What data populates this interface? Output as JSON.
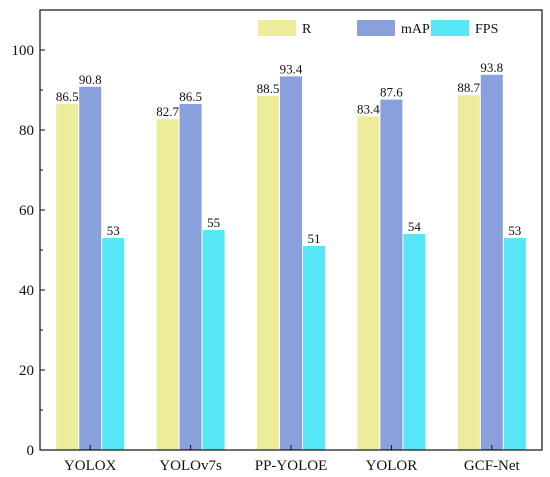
{
  "chart_data": {
    "type": "bar",
    "categories": [
      "YOLOX",
      "YOLOv7s",
      "PP-YOLOE",
      "YOLOR",
      "GCF-Net"
    ],
    "series": [
      {
        "name": "R",
        "values": [
          86.5,
          82.7,
          88.5,
          83.4,
          88.7
        ],
        "labels": [
          "86.5",
          "82.7",
          "88.5",
          "83.4",
          "88.7"
        ]
      },
      {
        "name": "mAP",
        "values": [
          90.8,
          86.5,
          93.4,
          87.6,
          93.8
        ],
        "labels": [
          "90.8",
          "86.5",
          "93.4",
          "87.6",
          "93.8"
        ]
      },
      {
        "name": "FPS",
        "values": [
          53,
          55,
          51,
          54,
          53
        ],
        "labels": [
          "53",
          "55",
          "51",
          "54",
          "53"
        ]
      }
    ],
    "colors": [
      "#ecec9a",
      "#8aa0dc",
      "#56e6f6"
    ],
    "ylim": [
      0,
      110
    ],
    "yticks": [
      0,
      20,
      40,
      60,
      80,
      100
    ],
    "ytick_labels": [
      "0",
      "20",
      "40",
      "60",
      "80",
      "100"
    ],
    "xlabel": "",
    "ylabel": "",
    "title": "",
    "legend_position": "top-right",
    "grid": false
  }
}
